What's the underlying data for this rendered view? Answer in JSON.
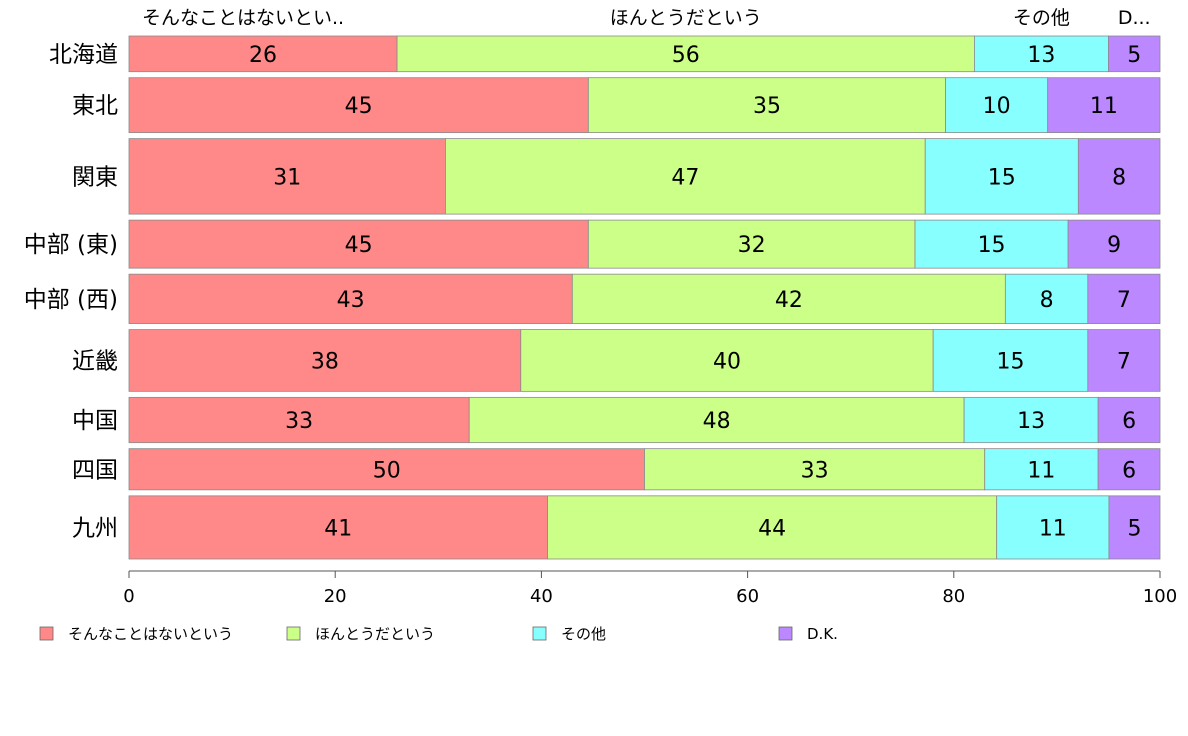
{
  "chart_data": {
    "type": "bar",
    "orientation": "horizontal",
    "stacked": true,
    "categories": [
      "北海道",
      "東北",
      "関東",
      "中部 (東)",
      "中部 (西)",
      "近畿",
      "中国",
      "四国",
      "九州"
    ],
    "series": [
      {
        "name": "そんなことはないという",
        "short_label": "そんなことはないとい..",
        "color": "#ff8888",
        "values": [
          26,
          45,
          31,
          45,
          43,
          38,
          33,
          50,
          41
        ]
      },
      {
        "name": "ほんとうだという",
        "short_label": "ほんとうだという",
        "color": "#ccff88",
        "values": [
          56,
          35,
          47,
          32,
          42,
          40,
          48,
          33,
          44
        ]
      },
      {
        "name": "その他",
        "short_label": "その他",
        "color": "#88ffff",
        "values": [
          13,
          10,
          15,
          15,
          8,
          15,
          13,
          11,
          11
        ]
      },
      {
        "name": "D.K.",
        "short_label": "D...",
        "color": "#bb88ff",
        "values": [
          5,
          11,
          8,
          9,
          7,
          7,
          6,
          6,
          5
        ]
      }
    ],
    "row_weights": [
      26,
      40,
      55,
      35,
      36,
      45,
      33,
      30,
      46
    ],
    "xlim": [
      0,
      100
    ],
    "xticks": [
      0,
      20,
      40,
      60,
      80,
      100
    ],
    "legend_position": "bottom",
    "grid": false
  }
}
